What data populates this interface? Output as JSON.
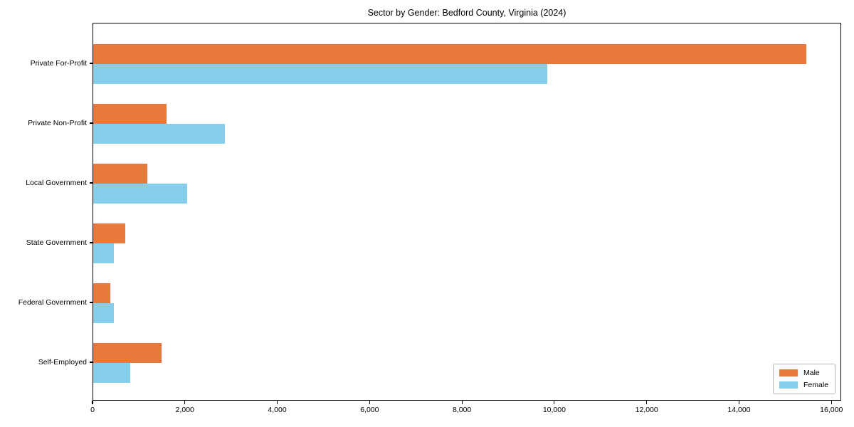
{
  "figure": {
    "background": "#ffffff",
    "border_color": "#000000"
  },
  "chart_data": {
    "type": "bar",
    "orientation": "horizontal",
    "title": "Sector by Gender: Bedford County, Virginia (2024)",
    "xlabel": "",
    "ylabel": "",
    "categories": [
      "Private For-Profit",
      "Private Non-Profit",
      "Local Government",
      "State Government",
      "Federal Government",
      "Self-Employed"
    ],
    "series": [
      {
        "name": "Male",
        "color": "#e8793d",
        "values": [
          15440,
          1585,
          1173,
          695,
          364,
          1482
        ]
      },
      {
        "name": "Female",
        "color": "#87ceeb",
        "values": [
          9830,
          2855,
          2037,
          452,
          452,
          797
        ]
      }
    ],
    "xlim": [
      0,
      16212
    ],
    "xticks": [
      {
        "value": 0,
        "label": "0"
      },
      {
        "value": 2000,
        "label": "2,000"
      },
      {
        "value": 4000,
        "label": "4,000"
      },
      {
        "value": 6000,
        "label": "6,000"
      },
      {
        "value": 8000,
        "label": "8,000"
      },
      {
        "value": 10000,
        "label": "10,000"
      },
      {
        "value": 12000,
        "label": "12,000"
      },
      {
        "value": 14000,
        "label": "14,000"
      },
      {
        "value": 16000,
        "label": "16,000"
      }
    ],
    "grid": false,
    "legend_position": "lower right"
  }
}
